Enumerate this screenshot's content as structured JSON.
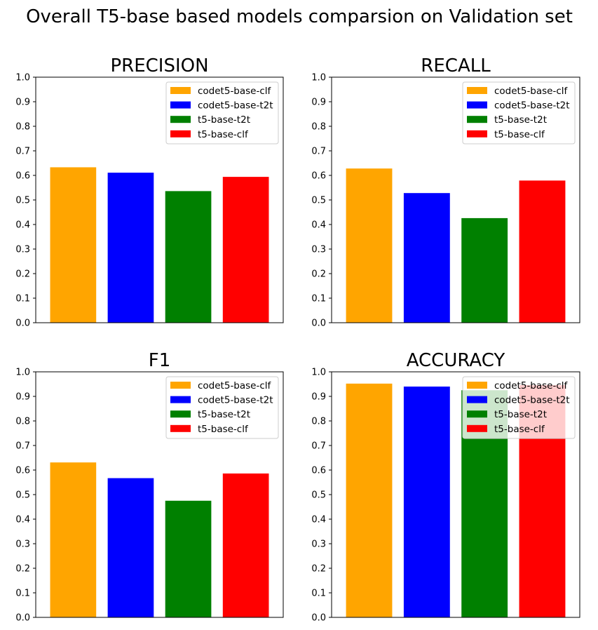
{
  "figure": {
    "title": "Overall T5-base based models comparsion on Validation set"
  },
  "chart_data": [
    {
      "type": "bar",
      "title": "PRECISION",
      "categories": [
        "codet5-base-clf",
        "codet5-base-t2t",
        "t5-base-t2t",
        "t5-base-clf"
      ],
      "values": [
        0.633,
        0.611,
        0.536,
        0.594
      ],
      "colors": [
        "#FFA500",
        "#0000FF",
        "#008000",
        "#FF0000"
      ],
      "ylim": [
        0,
        1.0
      ],
      "yticks": [
        "0.0",
        "0.1",
        "0.2",
        "0.3",
        "0.4",
        "0.5",
        "0.6",
        "0.7",
        "0.8",
        "0.9",
        "1.0"
      ],
      "legend": {
        "placement": "top-right",
        "entries": [
          "codet5-base-clf",
          "codet5-base-t2t",
          "t5-base-t2t",
          "t5-base-clf"
        ]
      },
      "grid": false
    },
    {
      "type": "bar",
      "title": "RECALL",
      "categories": [
        "codet5-base-clf",
        "codet5-base-t2t",
        "t5-base-t2t",
        "t5-base-clf"
      ],
      "values": [
        0.628,
        0.528,
        0.426,
        0.579
      ],
      "colors": [
        "#FFA500",
        "#0000FF",
        "#008000",
        "#FF0000"
      ],
      "ylim": [
        0,
        1.0
      ],
      "yticks": [
        "0.0",
        "0.1",
        "0.2",
        "0.3",
        "0.4",
        "0.5",
        "0.6",
        "0.7",
        "0.8",
        "0.9",
        "1.0"
      ],
      "legend": {
        "placement": "top-right",
        "entries": [
          "codet5-base-clf",
          "codet5-base-t2t",
          "t5-base-t2t",
          "t5-base-clf"
        ]
      },
      "grid": false
    },
    {
      "type": "bar",
      "title": "F1",
      "categories": [
        "codet5-base-clf",
        "codet5-base-t2t",
        "t5-base-t2t",
        "t5-base-clf"
      ],
      "values": [
        0.631,
        0.567,
        0.475,
        0.586
      ],
      "colors": [
        "#FFA500",
        "#0000FF",
        "#008000",
        "#FF0000"
      ],
      "ylim": [
        0,
        1.0
      ],
      "yticks": [
        "0.0",
        "0.1",
        "0.2",
        "0.3",
        "0.4",
        "0.5",
        "0.6",
        "0.7",
        "0.8",
        "0.9",
        "1.0"
      ],
      "legend": {
        "placement": "top-right",
        "entries": [
          "codet5-base-clf",
          "codet5-base-t2t",
          "t5-base-t2t",
          "t5-base-clf"
        ]
      },
      "grid": false
    },
    {
      "type": "bar",
      "title": "ACCURACY",
      "categories": [
        "codet5-base-clf",
        "codet5-base-t2t",
        "t5-base-t2t",
        "t5-base-clf"
      ],
      "values": [
        0.952,
        0.94,
        0.925,
        0.946
      ],
      "colors": [
        "#FFA500",
        "#0000FF",
        "#008000",
        "#FF0000"
      ],
      "ylim": [
        0,
        1.0
      ],
      "yticks": [
        "0.0",
        "0.1",
        "0.2",
        "0.3",
        "0.4",
        "0.5",
        "0.6",
        "0.7",
        "0.8",
        "0.9",
        "1.0"
      ],
      "legend": {
        "placement": "top-right",
        "entries": [
          "codet5-base-clf",
          "codet5-base-t2t",
          "t5-base-t2t",
          "t5-base-clf"
        ]
      },
      "grid": false
    }
  ]
}
